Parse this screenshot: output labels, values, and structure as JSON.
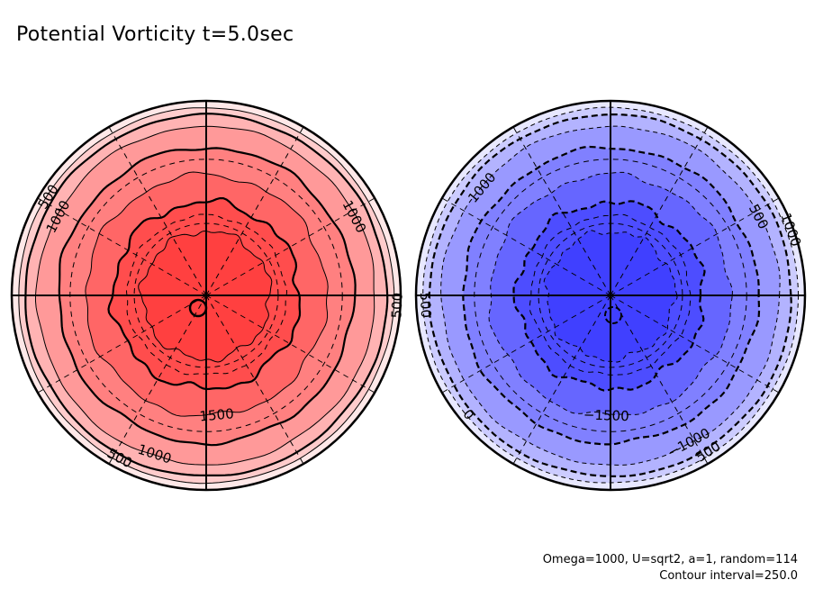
{
  "title": "Potential Vorticity t=5.0sec",
  "footer": {
    "params": "Omega=1000, U=sqrt2, a=1, random=114",
    "contour_interval": "Contour interval=250.0"
  },
  "chart_data": [
    {
      "type": "heatmap",
      "name": "positive-hemisphere",
      "projection": "polar",
      "title": "",
      "contour_levels": [
        0,
        250,
        500,
        750,
        1000,
        1250,
        1500,
        1750
      ],
      "contour_styles": {
        "positive": "solid",
        "negative": "dashed",
        "thick_every": 500
      },
      "shading_colors": [
        "#ffe8e8",
        "#ffcccc",
        "#ffb3b3",
        "#ff9999",
        "#ff8080",
        "#ff6666",
        "#ff4d4d",
        "#ff4040"
      ],
      "contour_labels": [
        {
          "text": "500",
          "angle_deg": 148
        },
        {
          "text": "1000",
          "angle_deg": 152
        },
        {
          "text": "1000",
          "angle_deg": 28
        },
        {
          "text": "500",
          "angle_deg": -3
        },
        {
          "text": "1500",
          "angle_deg": -85
        },
        {
          "text": "1000",
          "angle_deg": -108
        },
        {
          "text": "500",
          "angle_deg": -118
        }
      ],
      "value_range": [
        0,
        1750
      ],
      "grid_meridians_deg": 30
    },
    {
      "type": "heatmap",
      "name": "negative-hemisphere",
      "projection": "polar",
      "title": "",
      "contour_levels": [
        0,
        -250,
        -500,
        -750,
        -1000,
        -1250,
        -1500,
        -1750
      ],
      "contour_styles": {
        "positive": "solid",
        "negative": "dashed",
        "thick_every": 500
      },
      "shading_colors": [
        "#e8e8ff",
        "#ccccff",
        "#b3b3ff",
        "#9999ff",
        "#8080ff",
        "#6666ff",
        "#4d4dff",
        "#4040ff"
      ],
      "contour_labels": [
        {
          "text": "500",
          "angle_deg": 183
        },
        {
          "text": "1000",
          "angle_deg": 140
        },
        {
          "text": "500",
          "angle_deg": 28
        },
        {
          "text": "1000",
          "angle_deg": 20
        },
        {
          "text": "−1500",
          "angle_deg": -92
        },
        {
          "text": "−1000",
          "angle_deg": -62
        },
        {
          "text": "500",
          "angle_deg": -58
        },
        {
          "text": "0",
          "angle_deg": -140
        }
      ],
      "value_range": [
        -1750,
        0
      ],
      "grid_meridians_deg": 30
    }
  ]
}
